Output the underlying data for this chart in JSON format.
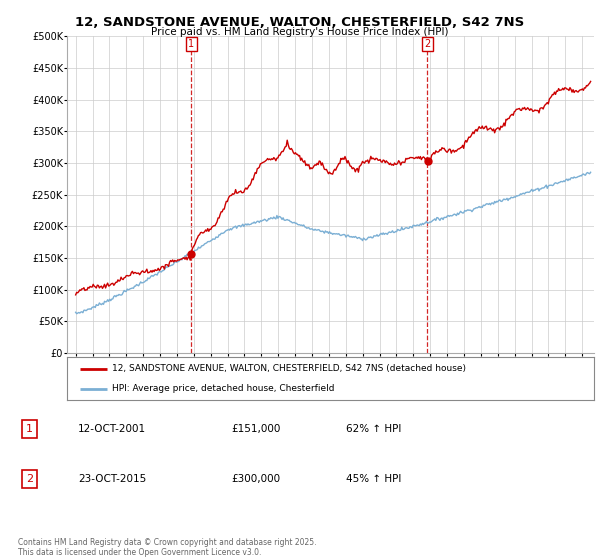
{
  "title": "12, SANDSTONE AVENUE, WALTON, CHESTERFIELD, S42 7NS",
  "subtitle": "Price paid vs. HM Land Registry's House Price Index (HPI)",
  "hpi_label": "HPI: Average price, detached house, Chesterfield",
  "property_label": "12, SANDSTONE AVENUE, WALTON, CHESTERFIELD, S42 7NS (detached house)",
  "sale1_date": "12-OCT-2001",
  "sale1_price": 151000,
  "sale1_pct": "62% ↑ HPI",
  "sale2_date": "23-OCT-2015",
  "sale2_price": 300000,
  "sale2_pct": "45% ↑ HPI",
  "footer": "Contains HM Land Registry data © Crown copyright and database right 2025.\nThis data is licensed under the Open Government Licence v3.0.",
  "property_color": "#cc0000",
  "hpi_color": "#7bafd4",
  "vline_color": "#cc0000",
  "background_color": "#ffffff",
  "ylim": [
    0,
    500000
  ],
  "yticks": [
    0,
    50000,
    100000,
    150000,
    200000,
    250000,
    300000,
    350000,
    400000,
    450000,
    500000
  ],
  "xlim_start": 1994.5,
  "xlim_end": 2025.7
}
